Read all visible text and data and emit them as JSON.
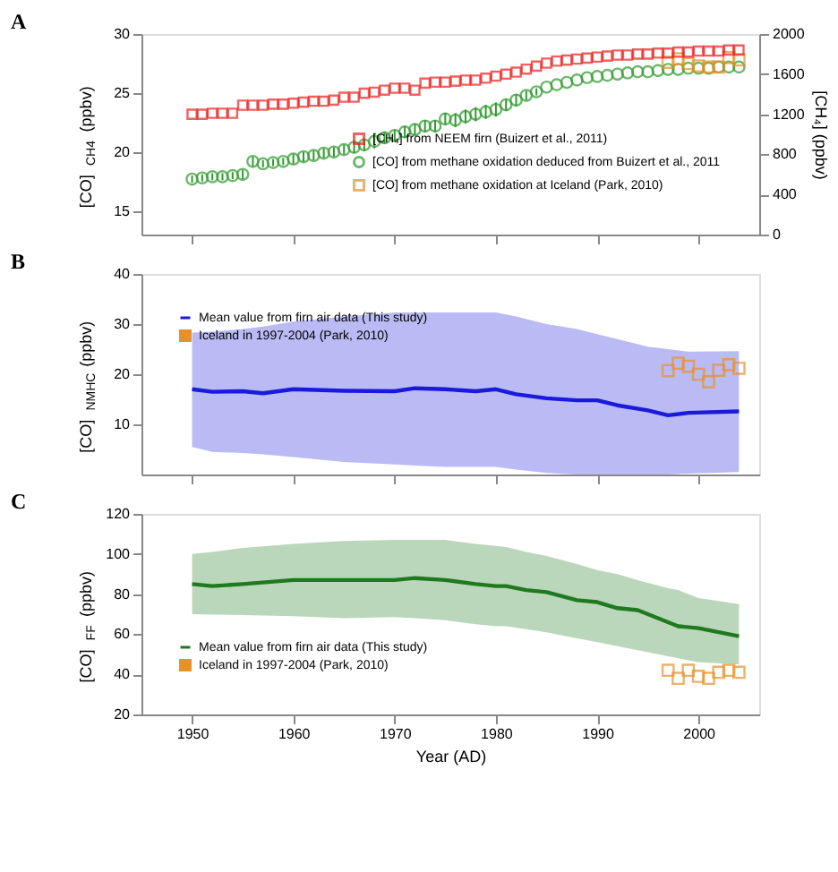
{
  "chart_data": [
    {
      "type": "scatter",
      "title": "A",
      "ylabel": "[CO]$_{CH4}$ (ppbv)",
      "y2label": "[CH₄] (ppbv)",
      "xlim": [
        1945,
        2006
      ],
      "xticks": [
        1950,
        1960,
        1970,
        1980,
        1990,
        2000
      ],
      "ylim": [
        13,
        30
      ],
      "yticks": [
        15,
        20,
        25,
        30
      ],
      "y2lim": [
        0,
        2000
      ],
      "y2ticks": [
        0,
        400,
        800,
        1200,
        1600,
        2000
      ],
      "tick_labels": "y",
      "grid": false,
      "legend": "bottom right",
      "series": [
        {
          "name": "[CH₄] from NEEM firn (Buizert et al., 2011)",
          "marker": "square",
          "axis": "y2",
          "color": "#e8201f",
          "x": [
            1950,
            1951,
            1952,
            1953,
            1954,
            1955,
            1956,
            1957,
            1958,
            1959,
            1960,
            1961,
            1962,
            1963,
            1964,
            1965,
            1966,
            1967,
            1968,
            1969,
            1970,
            1971,
            1972,
            1973,
            1974,
            1975,
            1976,
            1977,
            1978,
            1979,
            1980,
            1981,
            1982,
            1983,
            1984,
            1985,
            1986,
            1987,
            1988,
            1989,
            1990,
            1991,
            1992,
            1993,
            1994,
            1995,
            1996,
            1997,
            1998,
            1999,
            2000,
            2001,
            2002,
            2003,
            2004
          ],
          "values": [
            1200,
            1200,
            1210,
            1210,
            1210,
            1290,
            1290,
            1290,
            1300,
            1300,
            1310,
            1320,
            1330,
            1330,
            1340,
            1370,
            1370,
            1410,
            1420,
            1440,
            1460,
            1460,
            1440,
            1510,
            1520,
            1520,
            1530,
            1540,
            1540,
            1560,
            1580,
            1600,
            1620,
            1650,
            1680,
            1710,
            1730,
            1740,
            1750,
            1760,
            1770,
            1780,
            1790,
            1790,
            1800,
            1800,
            1810,
            1810,
            1820,
            1820,
            1830,
            1830,
            1830,
            1840,
            1840
          ]
        },
        {
          "name": "[CO] from methane oxidation deduced from Buizert et al., 2011",
          "marker": "circle",
          "color": "#2e9a2e",
          "x": [
            1950,
            1951,
            1952,
            1953,
            1954,
            1955,
            1956,
            1957,
            1958,
            1959,
            1960,
            1961,
            1962,
            1963,
            1964,
            1965,
            1966,
            1967,
            1968,
            1969,
            1970,
            1971,
            1972,
            1973,
            1974,
            1975,
            1976,
            1977,
            1978,
            1979,
            1980,
            1981,
            1982,
            1983,
            1984,
            1985,
            1986,
            1987,
            1988,
            1989,
            1990,
            1991,
            1992,
            1993,
            1994,
            1995,
            1996,
            1997,
            1998,
            1999,
            2000,
            2001,
            2002,
            2003,
            2004
          ],
          "values": [
            17.7,
            17.8,
            17.9,
            17.9,
            18.0,
            18.1,
            19.2,
            19.0,
            19.1,
            19.2,
            19.4,
            19.6,
            19.7,
            19.9,
            20.0,
            20.2,
            20.4,
            20.6,
            20.9,
            21.2,
            21.4,
            21.7,
            21.9,
            22.2,
            22.2,
            22.8,
            22.7,
            23.0,
            23.2,
            23.4,
            23.6,
            24.0,
            24.4,
            24.8,
            25.1,
            25.5,
            25.7,
            25.9,
            26.1,
            26.3,
            26.4,
            26.5,
            26.6,
            26.7,
            26.8,
            26.8,
            26.9,
            27.0,
            27.0,
            27.1,
            27.1,
            27.1,
            27.2,
            27.2,
            27.2
          ],
          "errors": [
            0.3,
            0.3,
            0.3,
            0.3,
            0.3,
            0.4,
            0.4,
            0.3,
            0.3,
            0.3,
            0.4,
            0.4,
            0.4,
            0.4,
            0.4,
            0.4,
            0.5,
            0.5,
            0.6,
            0.5,
            0.5,
            0.5,
            0.5,
            0.5,
            0.5,
            0.5,
            0.6,
            0.6,
            0.6,
            0.6,
            0.6,
            0.5,
            0.5,
            0.4,
            0.3,
            null,
            null,
            null,
            null,
            null,
            null,
            null,
            null,
            null,
            null,
            null,
            null,
            null,
            null,
            null,
            null,
            null,
            null,
            null,
            null
          ]
        },
        {
          "name": "[CO] from methane oxidation at Iceland (Park, 2010)",
          "marker": "square",
          "color": "#e8912a",
          "x": [
            1997,
            1998,
            1999,
            2000,
            2001,
            2002,
            2003,
            2004
          ],
          "values": [
            27.6,
            27.9,
            27.5,
            27.3,
            27.2,
            27.2,
            28.0,
            27.8
          ]
        }
      ]
    },
    {
      "type": "line",
      "title": "B",
      "ylabel": "[CO]$_{NMHC}$ (ppbv)",
      "xlim": [
        1945,
        2006
      ],
      "xticks": [
        1950,
        1960,
        1970,
        1980,
        1990,
        2000
      ],
      "ylim": [
        0,
        40
      ],
      "yticks": [
        10,
        20,
        30,
        40
      ],
      "tick_labels": "y",
      "grid": false,
      "legend": "top left",
      "series": [
        {
          "name": "Mean value from firn air data (This study)",
          "color": "#1a1adc",
          "x": [
            1950,
            1952,
            1955,
            1957,
            1960,
            1965,
            1970,
            1972,
            1975,
            1978,
            1980,
            1982,
            1985,
            1988,
            1990,
            1992,
            1995,
            1997,
            1999,
            2004
          ],
          "values": [
            17.0,
            16.5,
            16.6,
            16.2,
            17.0,
            16.7,
            16.6,
            17.2,
            17.0,
            16.6,
            17.0,
            16.0,
            15.2,
            14.8,
            14.8,
            13.8,
            12.8,
            11.8,
            12.3,
            12.6
          ],
          "lower": [
            5.5,
            4.5,
            4.3,
            4.0,
            3.5,
            2.5,
            2.0,
            1.8,
            1.5,
            1.5,
            1.5,
            1.0,
            0.3,
            0.0,
            0.0,
            0.0,
            0.0,
            0.0,
            0.2,
            0.5
          ],
          "upper": [
            28.3,
            28.5,
            29.0,
            29.5,
            30.5,
            31.5,
            32.3,
            32.3,
            32.3,
            32.3,
            32.3,
            31.5,
            30.0,
            29.0,
            28.0,
            27.0,
            25.5,
            25.0,
            24.5,
            24.6
          ]
        },
        {
          "name": "Iceland in 1997-2004 (Park, 2010)",
          "type": "scatter",
          "marker": "square",
          "color": "#e8912a",
          "x": [
            1997,
            1998,
            1999,
            2000,
            2001,
            2002,
            2003,
            2004
          ],
          "values": [
            20.7,
            22.2,
            21.6,
            20.0,
            18.5,
            20.8,
            21.9,
            21.2
          ]
        }
      ]
    },
    {
      "type": "line",
      "title": "C",
      "ylabel": "[CO]$_{FF}$ (ppbv)",
      "xlabel": "Year (AD)",
      "xlim": [
        1945,
        2006
      ],
      "xticks": [
        1950,
        1960,
        1970,
        1980,
        1990,
        2000
      ],
      "ylim": [
        20,
        120
      ],
      "yticks": [
        20,
        40,
        60,
        80,
        100,
        120
      ],
      "grid": false,
      "legend": "bottom left",
      "series": [
        {
          "name": "Mean value from firn air data (This study)",
          "color": "#1f7a1f",
          "x": [
            1950,
            1952,
            1955,
            1960,
            1965,
            1970,
            1972,
            1975,
            1978,
            1980,
            1981,
            1983,
            1985,
            1988,
            1990,
            1992,
            1994,
            1997,
            1998,
            2000,
            2004
          ],
          "values": [
            85,
            84,
            85,
            87,
            87,
            87,
            88,
            87,
            85,
            84,
            84,
            82,
            81,
            77,
            76,
            73,
            72,
            66,
            64,
            63,
            59
          ],
          "lower": [
            70,
            69.8,
            69.5,
            69,
            68,
            68.5,
            68,
            67,
            65,
            64,
            64,
            62.5,
            61,
            58,
            56,
            54,
            52,
            49,
            48,
            46,
            45
          ],
          "upper": [
            100,
            101,
            103,
            105,
            106.5,
            107,
            107,
            107,
            105,
            104,
            103.5,
            101,
            99,
            95,
            92,
            90,
            87,
            83,
            82,
            78,
            75
          ]
        },
        {
          "name": "Iceland in 1997-2004 (Park, 2010)",
          "type": "scatter",
          "marker": "square",
          "color": "#e8912a",
          "x": [
            1997,
            1998,
            1999,
            2000,
            2001,
            2002,
            2003,
            2004
          ],
          "values": [
            42,
            38,
            42,
            39,
            38,
            41,
            42,
            41
          ]
        }
      ]
    }
  ]
}
